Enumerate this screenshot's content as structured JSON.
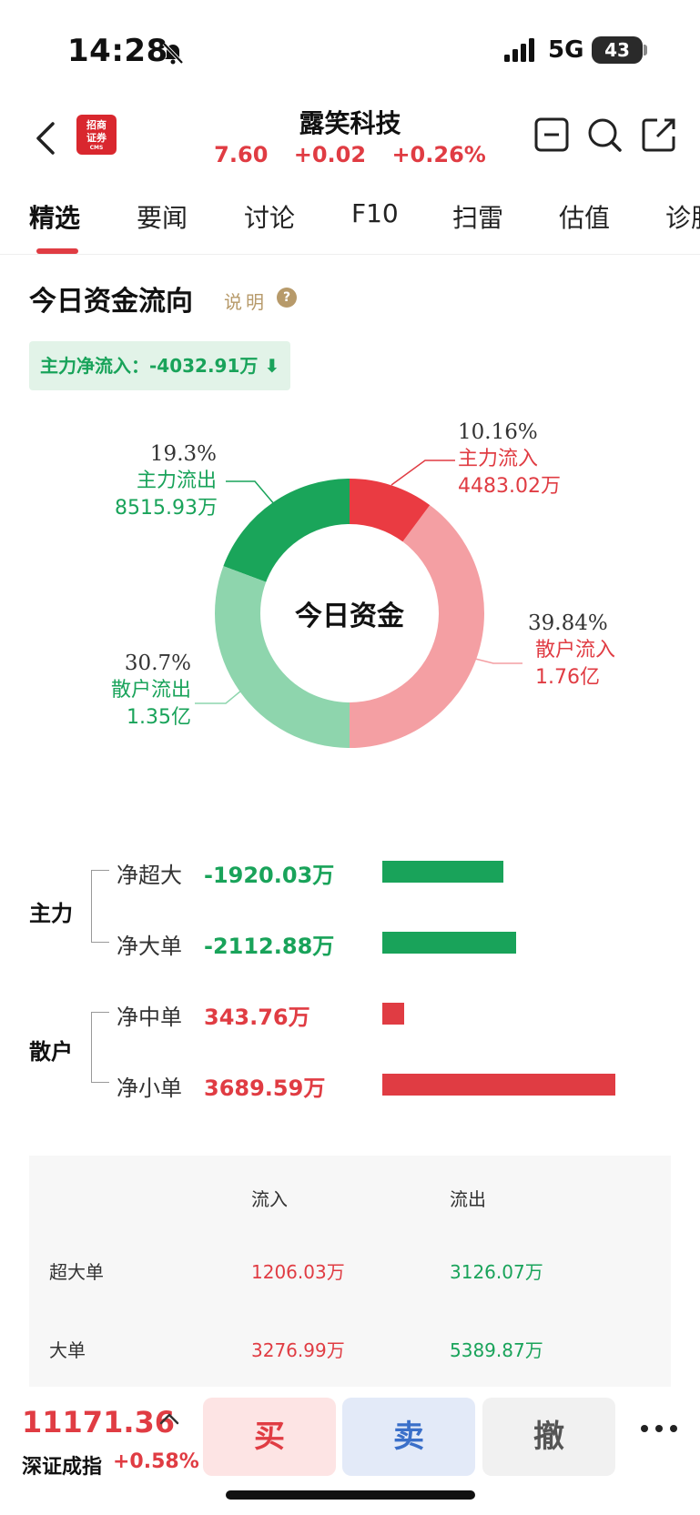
{
  "status_bar": {
    "time": "14:28",
    "network": "5G",
    "battery": "43"
  },
  "header": {
    "stock_name": "露笑科技",
    "price": "7.60",
    "change": "+0.02",
    "change_pct": "+0.26%",
    "logo_text_1": "招商",
    "logo_text_2": "证券",
    "logo_text_3": "CMS"
  },
  "tabs": [
    {
      "label": "精选"
    },
    {
      "label": "要闻"
    },
    {
      "label": "讨论"
    },
    {
      "label": "F10"
    },
    {
      "label": "扫雷"
    },
    {
      "label": "估值"
    },
    {
      "label": "诊股"
    }
  ],
  "section": {
    "title": "今日资金流向",
    "explain": "说明",
    "help": "?",
    "net_inflow": "主力净流入：-4032.91万 ⬇"
  },
  "chart_data": {
    "type": "pie",
    "donut": true,
    "center_label": "今日资金",
    "slices": [
      {
        "name": "主力流入",
        "pct": 10.16,
        "pct_label": "10.16%",
        "amount": "4483.02万",
        "color": "#ea3b42"
      },
      {
        "name": "散户流入",
        "pct": 39.84,
        "pct_label": "39.84%",
        "amount": "1.76亿",
        "color": "#f49fa3"
      },
      {
        "name": "散户流出",
        "pct": 30.7,
        "pct_label": "30.7%",
        "amount": "1.35亿",
        "color": "#8ed5ad"
      },
      {
        "name": "主力流出",
        "pct": 19.3,
        "pct_label": "19.3%",
        "amount": "8515.93万",
        "color": "#1aa55a"
      }
    ]
  },
  "breakdown": {
    "groups": [
      {
        "label": "主力",
        "rows": [
          {
            "label": "净超大",
            "value": "-1920.03万",
            "amount": -1920.03
          },
          {
            "label": "净大单",
            "value": "-2112.88万",
            "amount": -2112.88
          }
        ]
      },
      {
        "label": "散户",
        "rows": [
          {
            "label": "净中单",
            "value": "343.76万",
            "amount": 343.76
          },
          {
            "label": "净小单",
            "value": "3689.59万",
            "amount": 3689.59
          }
        ]
      }
    ],
    "max_abs": 3689.59
  },
  "table": {
    "col_in": "流入",
    "col_out": "流出",
    "rows": [
      {
        "label": "超大单",
        "in": "1206.03万",
        "out": "3126.07万"
      },
      {
        "label": "大单",
        "in": "3276.99万",
        "out": "5389.87万"
      }
    ]
  },
  "bottom_bar": {
    "index_value": "11171.36",
    "index_name": "深证成指",
    "index_change": "+0.58%",
    "buy": "买",
    "sell": "卖",
    "cancel": "撤"
  }
}
